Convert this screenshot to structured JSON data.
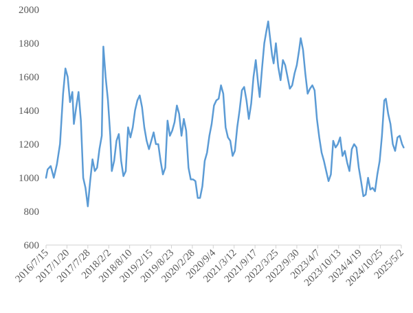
{
  "chart_data": {
    "type": "line",
    "title": "",
    "xlabel": "",
    "ylabel": "",
    "ylim": [
      600,
      2000
    ],
    "yticks": [
      600,
      800,
      1000,
      1200,
      1400,
      1600,
      1800,
      2000
    ],
    "grid": false,
    "legend": "none",
    "x_ticks": [
      "2016/7/15",
      "2017/1/20",
      "2017/7/28",
      "2018/2/2",
      "2018/8/10",
      "2019/2/15",
      "2019/8/23",
      "2020/2/28",
      "2020/9/4",
      "2021/3/12",
      "2021/9/17",
      "2022/3/25",
      "2022/9/30",
      "2023/4/7",
      "2023/10/13",
      "2024/4/19",
      "2024/10/25",
      "2025/5/2"
    ],
    "series": [
      {
        "color": "#5B9BD5",
        "points": [
          [
            "2016-07-15",
            1000
          ],
          [
            "2016-07-29",
            1050
          ],
          [
            "2016-08-26",
            1070
          ],
          [
            "2016-09-23",
            1000
          ],
          [
            "2016-10-21",
            1080
          ],
          [
            "2016-11-18",
            1200
          ],
          [
            "2016-12-16",
            1500
          ],
          [
            "2017-01-06",
            1650
          ],
          [
            "2017-01-27",
            1600
          ],
          [
            "2017-02-17",
            1450
          ],
          [
            "2017-03-10",
            1510
          ],
          [
            "2017-03-24",
            1320
          ],
          [
            "2017-04-14",
            1420
          ],
          [
            "2017-05-05",
            1510
          ],
          [
            "2017-05-26",
            1340
          ],
          [
            "2017-06-16",
            1000
          ],
          [
            "2017-07-07",
            940
          ],
          [
            "2017-07-28",
            830
          ],
          [
            "2017-08-18",
            980
          ],
          [
            "2017-09-08",
            1110
          ],
          [
            "2017-09-29",
            1040
          ],
          [
            "2017-10-20",
            1060
          ],
          [
            "2017-11-10",
            1170
          ],
          [
            "2017-12-01",
            1250
          ],
          [
            "2017-12-15",
            1780
          ],
          [
            "2018-01-05",
            1600
          ],
          [
            "2018-01-26",
            1460
          ],
          [
            "2018-02-16",
            1250
          ],
          [
            "2018-03-02",
            1040
          ],
          [
            "2018-03-23",
            1100
          ],
          [
            "2018-04-13",
            1220
          ],
          [
            "2018-05-04",
            1260
          ],
          [
            "2018-05-25",
            1100
          ],
          [
            "2018-06-15",
            1010
          ],
          [
            "2018-07-06",
            1040
          ],
          [
            "2018-07-27",
            1300
          ],
          [
            "2018-08-17",
            1240
          ],
          [
            "2018-09-07",
            1300
          ],
          [
            "2018-09-28",
            1400
          ],
          [
            "2018-10-19",
            1460
          ],
          [
            "2018-11-09",
            1490
          ],
          [
            "2018-11-30",
            1420
          ],
          [
            "2018-12-21",
            1300
          ],
          [
            "2019-01-11",
            1220
          ],
          [
            "2019-02-01",
            1170
          ],
          [
            "2019-02-22",
            1220
          ],
          [
            "2019-03-15",
            1270
          ],
          [
            "2019-04-05",
            1200
          ],
          [
            "2019-04-26",
            1200
          ],
          [
            "2019-05-17",
            1100
          ],
          [
            "2019-06-07",
            1020
          ],
          [
            "2019-06-28",
            1060
          ],
          [
            "2019-07-19",
            1340
          ],
          [
            "2019-08-09",
            1250
          ],
          [
            "2019-08-30",
            1280
          ],
          [
            "2019-09-20",
            1330
          ],
          [
            "2019-10-11",
            1430
          ],
          [
            "2019-11-01",
            1380
          ],
          [
            "2019-11-22",
            1250
          ],
          [
            "2019-12-13",
            1350
          ],
          [
            "2020-01-03",
            1280
          ],
          [
            "2020-01-24",
            1060
          ],
          [
            "2020-02-14",
            990
          ],
          [
            "2020-03-06",
            990
          ],
          [
            "2020-03-27",
            980
          ],
          [
            "2020-04-17",
            880
          ],
          [
            "2020-05-08",
            880
          ],
          [
            "2020-05-29",
            950
          ],
          [
            "2020-06-19",
            1100
          ],
          [
            "2020-07-10",
            1150
          ],
          [
            "2020-07-31",
            1250
          ],
          [
            "2020-08-21",
            1320
          ],
          [
            "2020-09-11",
            1430
          ],
          [
            "2020-10-02",
            1460
          ],
          [
            "2020-10-23",
            1470
          ],
          [
            "2020-11-13",
            1550
          ],
          [
            "2020-12-04",
            1500
          ],
          [
            "2020-12-25",
            1300
          ],
          [
            "2021-01-15",
            1240
          ],
          [
            "2021-02-05",
            1220
          ],
          [
            "2021-02-26",
            1130
          ],
          [
            "2021-03-19",
            1160
          ],
          [
            "2021-04-09",
            1300
          ],
          [
            "2021-04-30",
            1400
          ],
          [
            "2021-05-21",
            1520
          ],
          [
            "2021-06-11",
            1540
          ],
          [
            "2021-07-02",
            1460
          ],
          [
            "2021-07-23",
            1350
          ],
          [
            "2021-08-13",
            1440
          ],
          [
            "2021-09-03",
            1600
          ],
          [
            "2021-09-24",
            1700
          ],
          [
            "2021-10-15",
            1560
          ],
          [
            "2021-10-29",
            1480
          ],
          [
            "2021-11-19",
            1650
          ],
          [
            "2021-12-10",
            1800
          ],
          [
            "2021-12-31",
            1880
          ],
          [
            "2022-01-14",
            1930
          ],
          [
            "2022-01-28",
            1850
          ],
          [
            "2022-02-18",
            1730
          ],
          [
            "2022-03-04",
            1680
          ],
          [
            "2022-03-25",
            1800
          ],
          [
            "2022-04-15",
            1660
          ],
          [
            "2022-05-06",
            1580
          ],
          [
            "2022-05-27",
            1700
          ],
          [
            "2022-06-17",
            1670
          ],
          [
            "2022-07-08",
            1600
          ],
          [
            "2022-07-29",
            1530
          ],
          [
            "2022-08-19",
            1550
          ],
          [
            "2022-09-09",
            1620
          ],
          [
            "2022-09-30",
            1670
          ],
          [
            "2022-10-21",
            1760
          ],
          [
            "2022-11-04",
            1830
          ],
          [
            "2022-11-25",
            1760
          ],
          [
            "2022-12-16",
            1620
          ],
          [
            "2023-01-06",
            1500
          ],
          [
            "2023-01-27",
            1530
          ],
          [
            "2023-02-17",
            1550
          ],
          [
            "2023-03-10",
            1520
          ],
          [
            "2023-03-31",
            1350
          ],
          [
            "2023-04-21",
            1240
          ],
          [
            "2023-05-12",
            1150
          ],
          [
            "2023-06-02",
            1100
          ],
          [
            "2023-06-23",
            1040
          ],
          [
            "2023-07-14",
            980
          ],
          [
            "2023-08-04",
            1020
          ],
          [
            "2023-08-25",
            1220
          ],
          [
            "2023-09-15",
            1180
          ],
          [
            "2023-10-06",
            1200
          ],
          [
            "2023-10-27",
            1240
          ],
          [
            "2023-11-17",
            1130
          ],
          [
            "2023-12-08",
            1160
          ],
          [
            "2023-12-29",
            1090
          ],
          [
            "2024-01-19",
            1040
          ],
          [
            "2024-02-09",
            1170
          ],
          [
            "2024-03-01",
            1200
          ],
          [
            "2024-03-22",
            1180
          ],
          [
            "2024-04-12",
            1060
          ],
          [
            "2024-05-03",
            980
          ],
          [
            "2024-05-24",
            890
          ],
          [
            "2024-06-14",
            900
          ],
          [
            "2024-07-05",
            1000
          ],
          [
            "2024-07-26",
            930
          ],
          [
            "2024-08-16",
            940
          ],
          [
            "2024-09-06",
            920
          ],
          [
            "2024-09-27",
            1020
          ],
          [
            "2024-10-18",
            1100
          ],
          [
            "2024-11-08",
            1250
          ],
          [
            "2024-11-29",
            1460
          ],
          [
            "2024-12-13",
            1470
          ],
          [
            "2025-01-03",
            1380
          ],
          [
            "2025-01-24",
            1320
          ],
          [
            "2025-02-14",
            1200
          ],
          [
            "2025-03-07",
            1160
          ],
          [
            "2025-03-28",
            1240
          ],
          [
            "2025-04-18",
            1250
          ],
          [
            "2025-05-09",
            1200
          ],
          [
            "2025-05-23",
            1180
          ]
        ]
      }
    ]
  }
}
